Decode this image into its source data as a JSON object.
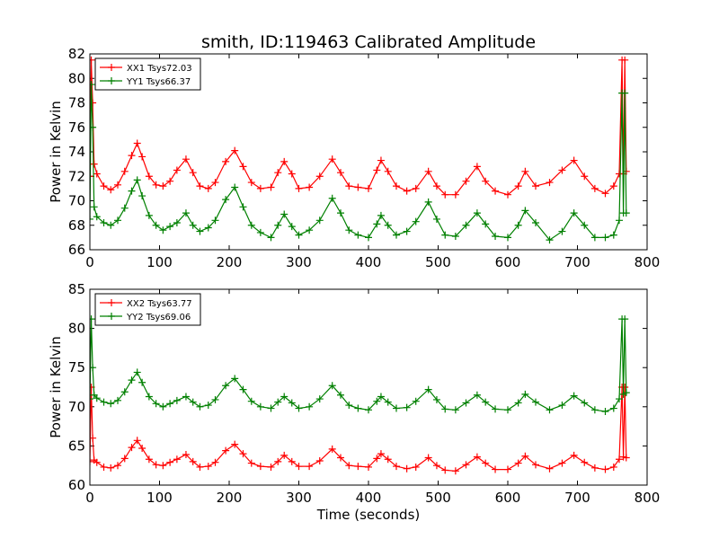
{
  "chart_data": [
    {
      "type": "line",
      "title": "smith, ID:119463 Calibrated Amplitude",
      "xlabel": "",
      "ylabel": "Power in Kelvin",
      "xlim": [
        0,
        800
      ],
      "ylim": [
        66,
        82
      ],
      "xticks": [
        0,
        100,
        200,
        300,
        400,
        500,
        600,
        700,
        800
      ],
      "yticks": [
        66,
        68,
        70,
        72,
        74,
        76,
        78,
        80,
        82
      ],
      "legend_position": "top-left",
      "grid": false,
      "series": [
        {
          "name": "XX1 Tsys72.03",
          "color": "#ff0000",
          "marker": "+",
          "x": [
            0,
            2,
            4,
            6,
            10,
            20,
            30,
            40,
            50,
            60,
            68,
            75,
            85,
            95,
            105,
            115,
            125,
            138,
            148,
            158,
            170,
            180,
            195,
            208,
            220,
            232,
            245,
            260,
            270,
            279,
            290,
            300,
            315,
            330,
            348,
            360,
            372,
            385,
            400,
            412,
            418,
            428,
            440,
            455,
            468,
            486,
            498,
            510,
            525,
            540,
            556,
            568,
            582,
            600,
            615,
            625,
            640,
            660,
            678,
            695,
            710,
            725,
            740,
            752,
            760,
            764,
            766,
            768,
            770
          ],
          "y": [
            72.0,
            81.5,
            78.0,
            73.0,
            72.2,
            71.2,
            70.9,
            71.3,
            72.4,
            73.7,
            74.7,
            73.6,
            72.0,
            71.3,
            71.2,
            71.6,
            72.5,
            73.4,
            72.3,
            71.2,
            71.0,
            71.5,
            73.2,
            74.1,
            72.8,
            71.5,
            71.0,
            71.1,
            72.3,
            73.2,
            72.2,
            71.0,
            71.1,
            72.0,
            73.4,
            72.3,
            71.2,
            71.1,
            71.0,
            72.5,
            73.3,
            72.4,
            71.2,
            70.8,
            71.0,
            72.4,
            71.2,
            70.5,
            70.5,
            71.6,
            72.8,
            71.6,
            70.8,
            70.5,
            71.2,
            72.4,
            71.2,
            71.5,
            72.5,
            73.3,
            72.0,
            71.0,
            70.6,
            71.2,
            72.2,
            81.5,
            72.2,
            81.5,
            72.4
          ]
        },
        {
          "name": "YY1 Tsys66.37",
          "color": "#008000",
          "marker": "+",
          "x": [
            0,
            2,
            4,
            6,
            10,
            20,
            30,
            40,
            50,
            60,
            68,
            75,
            85,
            95,
            105,
            115,
            125,
            138,
            148,
            158,
            170,
            180,
            195,
            208,
            220,
            232,
            245,
            260,
            270,
            279,
            290,
            300,
            315,
            330,
            348,
            360,
            372,
            385,
            400,
            412,
            418,
            428,
            440,
            455,
            468,
            486,
            498,
            510,
            525,
            540,
            556,
            568,
            582,
            600,
            615,
            625,
            640,
            660,
            678,
            695,
            710,
            725,
            740,
            752,
            760,
            764,
            766,
            768,
            770
          ],
          "y": [
            68.5,
            79.5,
            76.0,
            69.5,
            68.7,
            68.2,
            68.0,
            68.4,
            69.4,
            70.8,
            71.7,
            70.4,
            68.8,
            68.0,
            67.6,
            67.9,
            68.2,
            69.0,
            68.0,
            67.5,
            67.8,
            68.4,
            70.1,
            71.1,
            69.5,
            68.0,
            67.4,
            67.0,
            68.0,
            68.9,
            67.9,
            67.2,
            67.6,
            68.4,
            70.2,
            69.0,
            67.6,
            67.2,
            67.0,
            68.1,
            68.8,
            68.0,
            67.2,
            67.5,
            68.3,
            69.9,
            68.5,
            67.2,
            67.1,
            68.0,
            69.0,
            68.1,
            67.1,
            67.0,
            68.0,
            69.2,
            68.2,
            66.8,
            67.5,
            69.0,
            68.0,
            67.0,
            67.0,
            67.2,
            68.4,
            78.8,
            69.0,
            78.8,
            69.0
          ]
        }
      ]
    },
    {
      "type": "line",
      "title": "",
      "xlabel": "Time (seconds)",
      "ylabel": "Power in Kelvin",
      "xlim": [
        0,
        800
      ],
      "ylim": [
        60,
        85
      ],
      "xticks": [
        0,
        100,
        200,
        300,
        400,
        500,
        600,
        700,
        800
      ],
      "yticks": [
        60,
        65,
        70,
        75,
        80,
        85
      ],
      "legend_position": "top-left",
      "grid": false,
      "series": [
        {
          "name": "XX2 Tsys63.77",
          "color": "#ff0000",
          "marker": "+",
          "x": [
            0,
            2,
            4,
            6,
            10,
            20,
            30,
            40,
            50,
            60,
            68,
            75,
            85,
            95,
            105,
            115,
            125,
            138,
            148,
            158,
            170,
            180,
            195,
            208,
            220,
            232,
            245,
            260,
            270,
            279,
            290,
            300,
            315,
            330,
            348,
            360,
            372,
            385,
            400,
            412,
            418,
            428,
            440,
            455,
            468,
            486,
            498,
            510,
            525,
            540,
            556,
            568,
            582,
            600,
            615,
            625,
            640,
            660,
            678,
            695,
            710,
            725,
            740,
            752,
            760,
            764,
            766,
            768,
            770
          ],
          "y": [
            63.0,
            72.5,
            66.0,
            63.2,
            62.9,
            62.3,
            62.2,
            62.5,
            63.4,
            64.8,
            65.7,
            64.7,
            63.3,
            62.6,
            62.5,
            62.9,
            63.3,
            63.9,
            63.0,
            62.3,
            62.4,
            62.9,
            64.4,
            65.2,
            64.0,
            62.8,
            62.4,
            62.3,
            63.0,
            63.8,
            63.0,
            62.4,
            62.4,
            63.1,
            64.6,
            63.5,
            62.5,
            62.4,
            62.3,
            63.4,
            64.0,
            63.3,
            62.4,
            62.1,
            62.3,
            63.5,
            62.5,
            61.9,
            61.8,
            62.6,
            63.6,
            62.8,
            62.0,
            62.0,
            62.8,
            63.7,
            62.6,
            62.1,
            62.8,
            63.8,
            62.9,
            62.2,
            62.0,
            62.3,
            63.3,
            72.5,
            63.6,
            72.5,
            63.5
          ]
        },
        {
          "name": "YY2 Tsys69.06",
          "color": "#008000",
          "marker": "+",
          "x": [
            0,
            2,
            4,
            6,
            10,
            20,
            30,
            40,
            50,
            60,
            68,
            75,
            85,
            95,
            105,
            115,
            125,
            138,
            148,
            158,
            170,
            180,
            195,
            208,
            220,
            232,
            245,
            260,
            270,
            279,
            290,
            300,
            315,
            330,
            348,
            360,
            372,
            385,
            400,
            412,
            418,
            428,
            440,
            455,
            468,
            486,
            498,
            510,
            525,
            540,
            556,
            568,
            582,
            600,
            615,
            625,
            640,
            660,
            678,
            695,
            710,
            725,
            740,
            752,
            760,
            764,
            766,
            768,
            770
          ],
          "y": [
            71.0,
            81.2,
            75.0,
            71.5,
            71.1,
            70.6,
            70.4,
            70.8,
            71.9,
            73.4,
            74.4,
            73.1,
            71.3,
            70.4,
            70.0,
            70.4,
            70.8,
            71.3,
            70.6,
            70.0,
            70.2,
            70.9,
            72.7,
            73.6,
            72.2,
            70.7,
            70.0,
            69.8,
            70.6,
            71.3,
            70.5,
            69.8,
            70.0,
            71.0,
            72.7,
            71.5,
            70.2,
            69.8,
            69.6,
            70.7,
            71.3,
            70.6,
            69.8,
            69.9,
            70.7,
            72.2,
            70.9,
            69.7,
            69.6,
            70.5,
            71.5,
            70.6,
            69.7,
            69.6,
            70.5,
            71.6,
            70.6,
            69.6,
            70.2,
            71.4,
            70.5,
            69.6,
            69.4,
            69.8,
            71.0,
            81.2,
            71.6,
            81.2,
            71.8
          ]
        }
      ]
    }
  ]
}
